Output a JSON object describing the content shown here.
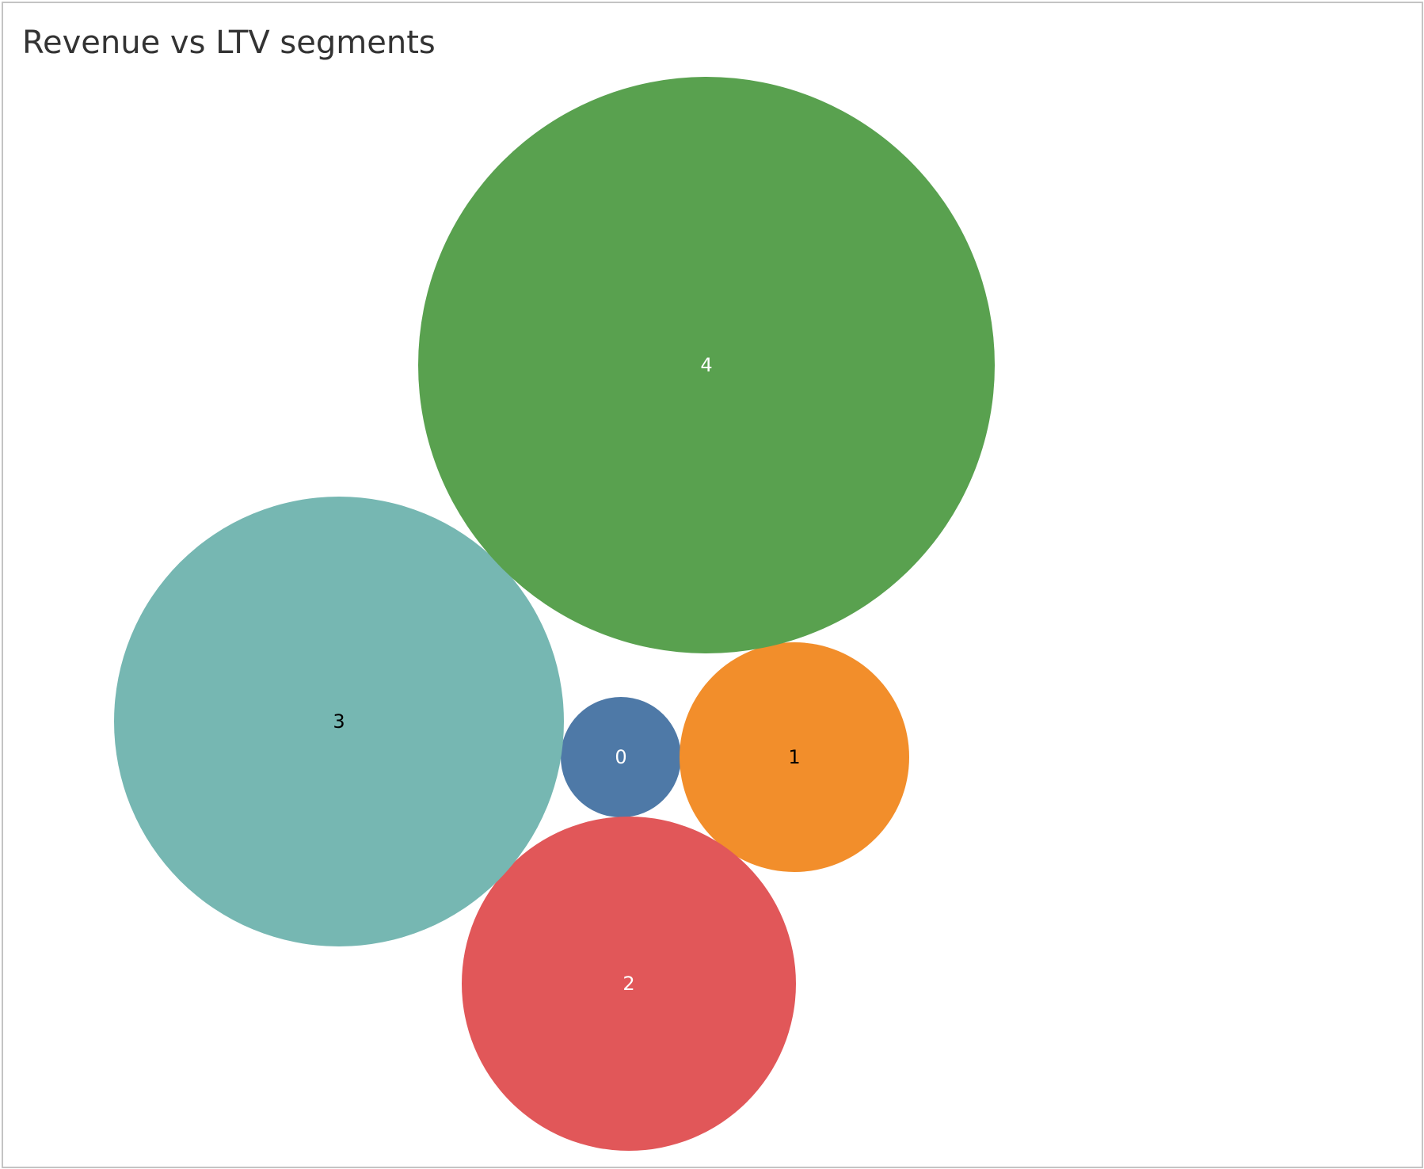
{
  "chart_data": {
    "type": "bubble",
    "title": "Revenue vs LTV segments",
    "legend": "none",
    "bubbles": [
      {
        "label": "0",
        "color": "#4e79a7",
        "text_color": "#ffffff"
      },
      {
        "label": "1",
        "color": "#f28e2b",
        "text_color": "#000000"
      },
      {
        "label": "2",
        "color": "#e15759",
        "text_color": "#ffffff"
      },
      {
        "label": "3",
        "color": "#76b7b2",
        "text_color": "#000000"
      },
      {
        "label": "4",
        "color": "#59a14f",
        "text_color": "#ffffff"
      }
    ]
  }
}
